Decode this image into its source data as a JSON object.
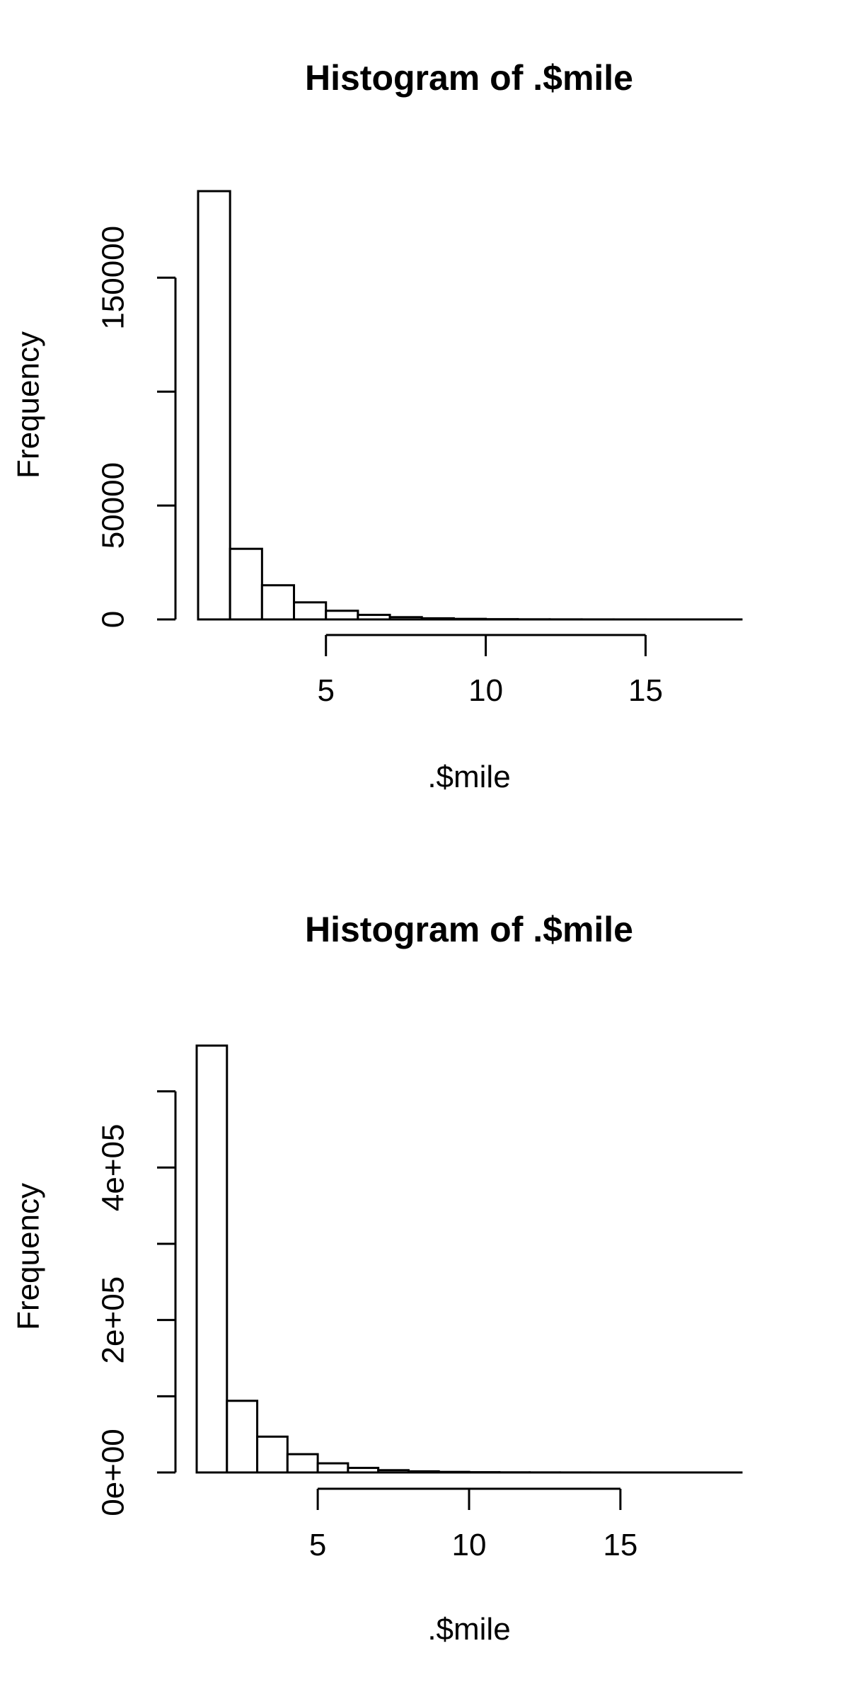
{
  "chart_data": [
    {
      "type": "bar",
      "title": "Histogram of .$mile",
      "xlabel": ".$mile",
      "ylabel": "Frequency",
      "bin_edges": [
        1,
        2,
        3,
        4,
        5,
        6,
        7,
        8,
        9,
        10,
        11,
        12,
        13,
        14,
        15,
        16,
        17,
        18
      ],
      "values": [
        188000,
        31000,
        15000,
        7500,
        3800,
        2000,
        1000,
        500,
        250,
        120,
        60,
        30,
        15,
        8,
        4,
        2,
        1
      ],
      "xlim": [
        1,
        18
      ],
      "ylim": [
        0,
        188000
      ],
      "x_ticks": [
        5,
        10,
        15
      ],
      "x_tick_labels": [
        "5",
        "10",
        "15"
      ],
      "y_ticks": [
        0,
        50000,
        100000,
        150000
      ],
      "y_tick_labels": [
        "0",
        "50000",
        "",
        "150000"
      ]
    },
    {
      "type": "bar",
      "title": "Histogram of .$mile",
      "xlabel": ".$mile",
      "ylabel": "Frequency",
      "bin_edges": [
        1,
        2,
        3,
        4,
        5,
        6,
        7,
        8,
        9,
        10,
        11,
        12,
        13,
        14,
        15,
        16,
        17,
        18,
        19
      ],
      "values": [
        560000,
        94000,
        47000,
        24000,
        12000,
        6000,
        3000,
        1500,
        750,
        375,
        190,
        95,
        48,
        24,
        12,
        6,
        3,
        1
      ],
      "xlim": [
        1,
        19
      ],
      "ylim": [
        0,
        560000
      ],
      "x_ticks": [
        5,
        10,
        15
      ],
      "x_tick_labels": [
        "5",
        "10",
        "15"
      ],
      "y_ticks": [
        0,
        100000,
        200000,
        300000,
        400000,
        500000
      ],
      "y_tick_labels": [
        "0e+00",
        "",
        "2e+05",
        "",
        "4e+05",
        ""
      ]
    }
  ]
}
